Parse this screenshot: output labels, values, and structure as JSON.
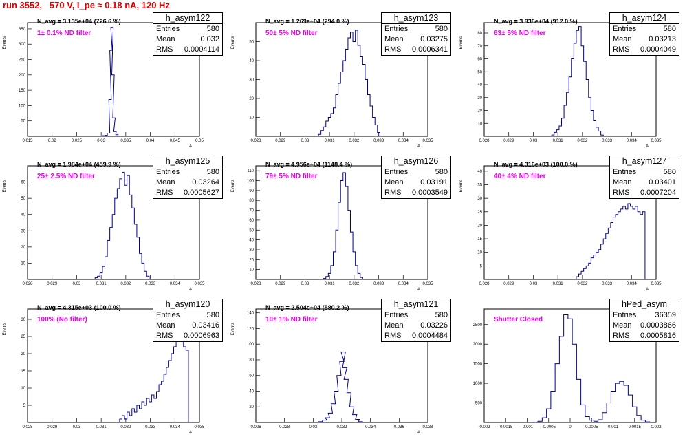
{
  "title": "run 3552,   570 V, I_pe ≈ 0.18 nA, 120 Hz",
  "chart_data": [
    {
      "type": "histogram",
      "name": "h_asym122",
      "n_avg": "N_avg = 3.135e+04 (726.6 %)",
      "note": "1± 0.1% ND filter",
      "entries": "580",
      "mean": "0.032",
      "rms": "0.0004114",
      "ylabel": "Events",
      "xlabel": "A",
      "xlim": [
        0.015,
        0.05
      ],
      "ylim": [
        0,
        370
      ],
      "yticks": [
        50,
        100,
        150,
        200,
        250,
        300,
        350
      ],
      "xticks": [
        "0.015",
        "0.02",
        "0.025",
        "0.03",
        "0.035",
        "0.04",
        "0.045",
        "0.05"
      ],
      "xtick_values": [
        0.015,
        0.02,
        0.025,
        0.03,
        0.035,
        0.04,
        0.045,
        0.05
      ],
      "bins": [
        [
          0.0305,
          2
        ],
        [
          0.031,
          3
        ],
        [
          0.0315,
          10
        ],
        [
          0.0318,
          120
        ],
        [
          0.032,
          280
        ],
        [
          0.0322,
          355
        ],
        [
          0.0324,
          200
        ],
        [
          0.0326,
          60
        ],
        [
          0.0328,
          15
        ],
        [
          0.0332,
          5
        ],
        [
          0.0336,
          0
        ]
      ]
    },
    {
      "type": "histogram",
      "name": "h_asym123",
      "n_avg": "N_avg = 1.269e+04 (294.0 %)",
      "note": "50± 5% ND filter",
      "entries": "580",
      "mean": "0.03275",
      "rms": "0.0006341",
      "ylabel": "Events",
      "xlabel": "A",
      "xlim": [
        0.028,
        0.035
      ],
      "ylim": [
        0,
        60
      ],
      "yticks": [
        10,
        20,
        30,
        40,
        50
      ],
      "xticks": [
        "0.028",
        "0.029",
        "0.03",
        "0.031",
        "0.032",
        "0.033",
        "0.034",
        "0.035"
      ],
      "xtick_values": [
        0.028,
        0.029,
        0.03,
        0.031,
        0.032,
        0.033,
        0.034,
        0.035
      ],
      "bins": [
        [
          0.0306,
          1
        ],
        [
          0.0307,
          3
        ],
        [
          0.0308,
          5
        ],
        [
          0.0309,
          8
        ],
        [
          0.031,
          10
        ],
        [
          0.0311,
          12
        ],
        [
          0.0312,
          15
        ],
        [
          0.0313,
          22
        ],
        [
          0.0314,
          28
        ],
        [
          0.0315,
          34
        ],
        [
          0.0316,
          40
        ],
        [
          0.0317,
          46
        ],
        [
          0.0318,
          52
        ],
        [
          0.0319,
          55
        ],
        [
          0.032,
          50
        ],
        [
          0.0321,
          56
        ],
        [
          0.0322,
          48
        ],
        [
          0.0323,
          42
        ],
        [
          0.0324,
          38
        ],
        [
          0.0325,
          30
        ],
        [
          0.0326,
          22
        ],
        [
          0.0327,
          16
        ],
        [
          0.0328,
          10
        ],
        [
          0.0329,
          6
        ],
        [
          0.033,
          2
        ]
      ]
    },
    {
      "type": "histogram",
      "name": "h_asym124",
      "n_avg": "N_avg = 3.936e+04 (912.0 %)",
      "note": "63± 5% ND filter",
      "entries": "580",
      "mean": "0.03213",
      "rms": "0.0004049",
      "ylabel": "Events",
      "xlabel": "A",
      "xlim": [
        0.028,
        0.035
      ],
      "ylim": [
        0,
        88
      ],
      "yticks": [
        10,
        20,
        30,
        40,
        50,
        60,
        70,
        80
      ],
      "xticks": [
        "0.028",
        "0.029",
        "0.03",
        "0.031",
        "0.032",
        "0.033",
        "0.034",
        "0.035"
      ],
      "xtick_values": [
        0.028,
        0.029,
        0.03,
        0.031,
        0.032,
        0.033,
        0.034,
        0.035
      ],
      "bins": [
        [
          0.0308,
          1
        ],
        [
          0.0309,
          3
        ],
        [
          0.031,
          5
        ],
        [
          0.0311,
          8
        ],
        [
          0.0312,
          14
        ],
        [
          0.0313,
          24
        ],
        [
          0.0314,
          34
        ],
        [
          0.0315,
          46
        ],
        [
          0.0316,
          60
        ],
        [
          0.0317,
          72
        ],
        [
          0.0318,
          82
        ],
        [
          0.0319,
          85
        ],
        [
          0.032,
          70
        ],
        [
          0.0321,
          58
        ],
        [
          0.0322,
          44
        ],
        [
          0.0323,
          30
        ],
        [
          0.0324,
          20
        ],
        [
          0.0325,
          12
        ],
        [
          0.0326,
          7
        ],
        [
          0.0327,
          4
        ],
        [
          0.0328,
          1
        ]
      ]
    },
    {
      "type": "histogram",
      "name": "h_asym125",
      "n_avg": "N_avg = 1.984e+04 (459.9 %)",
      "note": "25± 2.5% ND filter",
      "entries": "580",
      "mean": "0.03264",
      "rms": "0.0005627",
      "ylabel": "Events",
      "xlabel": "A",
      "xlim": [
        0.028,
        0.035
      ],
      "ylim": [
        0,
        70
      ],
      "yticks": [
        10,
        20,
        30,
        40,
        50,
        60
      ],
      "xticks": [
        "0.028",
        "0.029",
        "0.03",
        "0.031",
        "0.032",
        "0.033",
        "0.034",
        "0.035"
      ],
      "xtick_values": [
        0.028,
        0.029,
        0.03,
        0.031,
        0.032,
        0.033,
        0.034,
        0.035
      ],
      "bins": [
        [
          0.0308,
          1
        ],
        [
          0.0309,
          2
        ],
        [
          0.031,
          4
        ],
        [
          0.0311,
          8
        ],
        [
          0.0312,
          14
        ],
        [
          0.0313,
          24
        ],
        [
          0.0314,
          32
        ],
        [
          0.0315,
          40
        ],
        [
          0.0316,
          50
        ],
        [
          0.0317,
          56
        ],
        [
          0.0318,
          62
        ],
        [
          0.0319,
          66
        ],
        [
          0.032,
          58
        ],
        [
          0.0321,
          64
        ],
        [
          0.0322,
          52
        ],
        [
          0.0323,
          44
        ],
        [
          0.0324,
          34
        ],
        [
          0.0325,
          26
        ],
        [
          0.0326,
          16
        ],
        [
          0.0327,
          10
        ],
        [
          0.0328,
          5
        ],
        [
          0.0329,
          2
        ]
      ]
    },
    {
      "type": "histogram",
      "name": "h_asym126",
      "n_avg": "N_avg = 4.956e+04 (1148.4 %)",
      "note": "79± 5% ND filter",
      "entries": "580",
      "mean": "0.03191",
      "rms": "0.0003549",
      "ylabel": "Events",
      "xlabel": "A",
      "xlim": [
        0.028,
        0.035
      ],
      "ylim": [
        0,
        115
      ],
      "yticks": [
        10,
        20,
        30,
        40,
        50,
        60,
        70,
        80,
        90,
        100,
        110
      ],
      "xticks": [
        "0.028",
        "0.029",
        "0.03",
        "0.031",
        "0.032",
        "0.033",
        "0.034",
        "0.035"
      ],
      "xtick_values": [
        0.028,
        0.029,
        0.03,
        0.031,
        0.032,
        0.033,
        0.034,
        0.035
      ],
      "bins": [
        [
          0.0308,
          1
        ],
        [
          0.0309,
          3
        ],
        [
          0.031,
          6
        ],
        [
          0.0311,
          14
        ],
        [
          0.0312,
          28
        ],
        [
          0.0313,
          50
        ],
        [
          0.0314,
          78
        ],
        [
          0.0315,
          100
        ],
        [
          0.0316,
          108
        ],
        [
          0.0317,
          94
        ],
        [
          0.0318,
          70
        ],
        [
          0.0319,
          48
        ],
        [
          0.032,
          28
        ],
        [
          0.0321,
          14
        ],
        [
          0.0322,
          6
        ],
        [
          0.0323,
          2
        ]
      ]
    },
    {
      "type": "histogram",
      "name": "h_asym127",
      "n_avg": "N_avg = 4.316e+03 (100.0 %)",
      "note": "40± 4% ND filter",
      "entries": "580",
      "mean": "0.03401",
      "rms": "0.0007204",
      "ylabel": "Events",
      "xlabel": "A",
      "xlim": [
        0.028,
        0.035
      ],
      "ylim": [
        0,
        42
      ],
      "yticks": [
        5,
        10,
        15,
        20,
        25,
        30,
        35,
        40
      ],
      "xticks": [
        "0.028",
        "0.029",
        "0.03",
        "0.031",
        "0.032",
        "0.033",
        "0.034",
        "0.035"
      ],
      "xtick_values": [
        0.028,
        0.029,
        0.03,
        0.031,
        0.032,
        0.033,
        0.034,
        0.035
      ],
      "bins": [
        [
          0.0318,
          1
        ],
        [
          0.0319,
          2
        ],
        [
          0.032,
          3
        ],
        [
          0.0321,
          4
        ],
        [
          0.0322,
          5
        ],
        [
          0.0323,
          6
        ],
        [
          0.0324,
          8
        ],
        [
          0.0325,
          9
        ],
        [
          0.0326,
          10
        ],
        [
          0.0327,
          11
        ],
        [
          0.0328,
          13
        ],
        [
          0.0329,
          15
        ],
        [
          0.033,
          17
        ],
        [
          0.0331,
          19
        ],
        [
          0.0332,
          21
        ],
        [
          0.0333,
          23
        ],
        [
          0.0334,
          24
        ],
        [
          0.0335,
          25
        ],
        [
          0.0336,
          26
        ],
        [
          0.0337,
          27
        ],
        [
          0.0338,
          26
        ],
        [
          0.0339,
          28
        ],
        [
          0.034,
          27
        ],
        [
          0.0341,
          26
        ],
        [
          0.0342,
          27
        ],
        [
          0.0343,
          25
        ],
        [
          0.0344,
          24
        ],
        [
          0.0345,
          25
        ]
      ]
    },
    {
      "type": "histogram",
      "name": "h_asym120",
      "n_avg": "N_avg = 4.315e+03 (100.0 %)",
      "note": "100% (No filter)",
      "entries": "580",
      "mean": "0.03416",
      "rms": "0.0006963",
      "ylabel": "Events",
      "xlabel": "A",
      "xlim": [
        0.028,
        0.035
      ],
      "ylim": [
        0,
        33
      ],
      "yticks": [
        5,
        10,
        15,
        20,
        25,
        30
      ],
      "xticks": [
        "0.028",
        "0.029",
        "0.03",
        "0.031",
        "0.032",
        "0.033",
        "0.034",
        "0.035"
      ],
      "xtick_values": [
        0.028,
        0.029,
        0.03,
        0.031,
        0.032,
        0.033,
        0.034,
        0.035
      ],
      "bins": [
        [
          0.0318,
          1
        ],
        [
          0.0319,
          2
        ],
        [
          0.032,
          1
        ],
        [
          0.0321,
          3
        ],
        [
          0.0322,
          2
        ],
        [
          0.0323,
          4
        ],
        [
          0.0324,
          3
        ],
        [
          0.0325,
          5
        ],
        [
          0.0326,
          4
        ],
        [
          0.0327,
          6
        ],
        [
          0.0328,
          5
        ],
        [
          0.0329,
          7
        ],
        [
          0.033,
          6
        ],
        [
          0.0331,
          8
        ],
        [
          0.0332,
          7
        ],
        [
          0.0333,
          9
        ],
        [
          0.0334,
          11
        ],
        [
          0.0335,
          12
        ],
        [
          0.0336,
          14
        ],
        [
          0.0337,
          16
        ],
        [
          0.0338,
          18
        ],
        [
          0.0339,
          20
        ],
        [
          0.034,
          22
        ],
        [
          0.0341,
          24
        ],
        [
          0.0342,
          25
        ],
        [
          0.0343,
          24
        ],
        [
          0.0344,
          22
        ],
        [
          0.0345,
          21
        ]
      ]
    },
    {
      "type": "histogram",
      "name": "h_asym121",
      "n_avg": "N_avg = 2.504e+04 (580.2 %)",
      "note": "10± 1% ND filter",
      "entries": "580",
      "mean": "0.03226",
      "rms": "0.0004484",
      "ylabel": "Events",
      "xlabel": "A",
      "xlim": [
        0.026,
        0.038
      ],
      "ylim": [
        0,
        145
      ],
      "yticks": [
        20,
        40,
        60,
        80,
        100,
        120,
        140
      ],
      "xticks": [
        "0.026",
        "0.028",
        "0.03",
        "0.032",
        "0.034",
        "0.036",
        "0.038"
      ],
      "xtick_values": [
        0.026,
        0.028,
        0.03,
        0.032,
        0.034,
        0.036,
        0.038
      ],
      "bins": [
        [
          0.0305,
          1
        ],
        [
          0.0308,
          3
        ],
        [
          0.031,
          6
        ],
        [
          0.0312,
          12
        ],
        [
          0.0314,
          24
        ],
        [
          0.0316,
          40
        ],
        [
          0.0318,
          60
        ],
        [
          0.032,
          78
        ],
        [
          0.0321,
          90
        ],
        [
          0.0322,
          70
        ],
        [
          0.0323,
          55
        ],
        [
          0.0325,
          38
        ],
        [
          0.0327,
          20
        ],
        [
          0.0329,
          10
        ],
        [
          0.0331,
          4
        ],
        [
          0.0333,
          1
        ]
      ]
    },
    {
      "type": "histogram",
      "name": "hPed_asym",
      "n_avg": "",
      "note": "Shutter Closed",
      "entries": "36359",
      "mean": "0.0003866",
      "rms": "0.0005816",
      "ylabel": "",
      "xlabel": "",
      "xlim": [
        -0.002,
        0.002
      ],
      "ylim": [
        0,
        2900
      ],
      "yticks": [
        500,
        1000,
        1500,
        2000,
        2500
      ],
      "xticks": [
        "-0.002",
        "-0.0015",
        "-0.001",
        "-0.0005",
        "0",
        "0.0005",
        "0.001",
        "0.0015",
        "0.002"
      ],
      "xtick_values": [
        -0.002,
        -0.0015,
        -0.001,
        -0.0005,
        0,
        0.0005,
        0.001,
        0.0015,
        0.002
      ],
      "bins": [
        [
          -0.0008,
          5
        ],
        [
          -0.0007,
          30
        ],
        [
          -0.0006,
          120
        ],
        [
          -0.0005,
          350
        ],
        [
          -0.0004,
          800
        ],
        [
          -0.0003,
          1500
        ],
        [
          -0.0002,
          2200
        ],
        [
          -0.0001,
          2750
        ],
        [
          0,
          2650
        ],
        [
          0.0001,
          2000
        ],
        [
          0.0002,
          1100
        ],
        [
          0.0003,
          450
        ],
        [
          0.0004,
          150
        ],
        [
          0.0005,
          60
        ],
        [
          0.0006,
          30
        ],
        [
          0.0007,
          70
        ],
        [
          0.0008,
          250
        ],
        [
          0.0009,
          500
        ],
        [
          0.001,
          800
        ],
        [
          0.0011,
          1000
        ],
        [
          0.0012,
          1050
        ],
        [
          0.0013,
          950
        ],
        [
          0.0014,
          700
        ],
        [
          0.0015,
          400
        ],
        [
          0.0016,
          180
        ],
        [
          0.0017,
          60
        ],
        [
          0.0018,
          15
        ]
      ]
    }
  ]
}
